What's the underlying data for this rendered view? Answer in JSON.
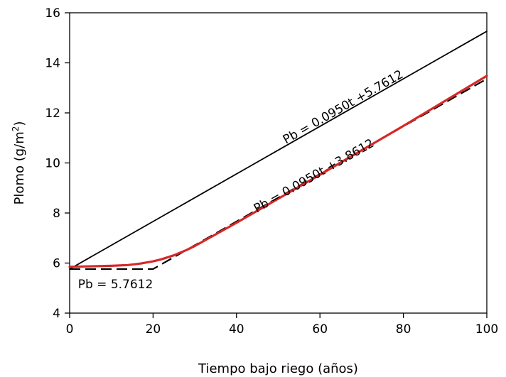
{
  "chart_data": {
    "type": "line",
    "title": "",
    "xlabel": "Tiempo bajo riego (años)",
    "ylabel": "Plomo (g/m",
    "ylabel_superscript": "2",
    "ylabel_suffix": ")",
    "xlim": [
      0,
      100
    ],
    "ylim": [
      4,
      16
    ],
    "xticks": [
      0,
      20,
      40,
      60,
      80,
      100
    ],
    "yticks": [
      4,
      6,
      8,
      10,
      12,
      14,
      16
    ],
    "grid": false,
    "legend": "none",
    "series": [
      {
        "color": "#000000",
        "style": "solid",
        "points": [
          [
            0,
            5.7612
          ],
          [
            100,
            15.2612
          ]
        ]
      },
      {
        "color": "#000000",
        "style": "dashed",
        "points": [
          [
            0,
            5.7612
          ],
          [
            20,
            5.7612
          ],
          [
            100,
            13.3612
          ]
        ]
      },
      {
        "color": "#d62828",
        "style": "solid",
        "points": [
          [
            0,
            5.85
          ],
          [
            5,
            5.87
          ],
          [
            10,
            5.89
          ],
          [
            14,
            5.92
          ],
          [
            17,
            5.98
          ],
          [
            20,
            6.07
          ],
          [
            22,
            6.15
          ],
          [
            25,
            6.31
          ],
          [
            28,
            6.52
          ],
          [
            30,
            6.68
          ],
          [
            40,
            7.61
          ],
          [
            60,
            9.53
          ],
          [
            80,
            11.48
          ],
          [
            100,
            13.48
          ]
        ]
      }
    ],
    "annotations": [
      {
        "text": "Pb = 0.0950t +5.7612",
        "x": 66,
        "y": 12.1,
        "rotate_along": 0
      },
      {
        "text": "Pb = 0.0950t +3.8612",
        "x": 59,
        "y": 9.35,
        "rotate_along": 1
      },
      {
        "text": "Pb = 5.7612",
        "x": 2,
        "y": 5.0,
        "rotate_along": null
      }
    ]
  }
}
